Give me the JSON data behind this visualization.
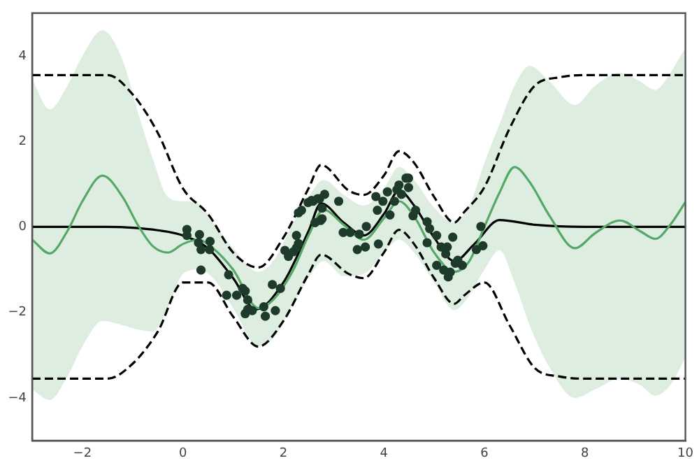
{
  "chart_data": {
    "type": "line",
    "xlim": [
      -3,
      10
    ],
    "ylim": [
      -5,
      5
    ],
    "xticks": [
      {
        "value": -2,
        "label": "−2"
      },
      0,
      2,
      4,
      6,
      8,
      10
    ],
    "yticks": [
      {
        "value": -4,
        "label": "−4"
      },
      {
        "value": -2,
        "label": "−2"
      },
      0,
      2,
      4
    ],
    "grid": false,
    "legend": false,
    "series": [
      {
        "color": "#55a868",
        "marker": "none",
        "line_style": "solid",
        "x": [
          -3,
          -2.65,
          -2.3,
          -2,
          -1.6,
          -1.2,
          -0.9,
          -0.6,
          -0.3,
          0,
          0.3,
          0.6,
          1,
          1.5,
          1.8,
          2.2,
          2.5,
          2.8,
          3.2,
          3.6,
          4,
          4.3,
          4.6,
          5,
          5.4,
          5.7,
          6,
          6.3,
          6.6,
          6.9,
          7.3,
          7.8,
          8.2,
          8.7,
          9.1,
          9.4,
          9.7,
          10
        ],
        "values": [
          -0.3,
          -0.62,
          -0.1,
          0.6,
          1.2,
          0.7,
          0.05,
          -0.45,
          -0.6,
          -0.4,
          -0.3,
          -0.5,
          -1.0,
          -1.9,
          -1.7,
          -1.0,
          -0.2,
          0.4,
          0.05,
          -0.3,
          0.2,
          0.6,
          0.25,
          -0.6,
          -1.05,
          -0.8,
          0.0,
          0.8,
          1.4,
          1.05,
          0.25,
          -0.5,
          -0.15,
          0.15,
          -0.1,
          -0.28,
          0.05,
          0.58
        ],
        "lower": [
          -3.8,
          -4.05,
          -3.5,
          -2.8,
          -2.2,
          -2.3,
          -2.4,
          -2.45,
          -1.9,
          -1.1,
          -1.0,
          -1.2,
          -1.9,
          -2.8,
          -2.6,
          -1.8,
          -1.2,
          -0.8,
          -1.15,
          -1.1,
          -0.6,
          -0.3,
          -0.6,
          -1.3,
          -1.95,
          -1.6,
          -1.0,
          -0.55,
          -1.3,
          -2.3,
          -3.3,
          -4.0,
          -3.8,
          -3.55,
          -3.7,
          -3.95,
          -3.7,
          -3.06
        ],
        "upper": [
          3.45,
          2.75,
          3.3,
          4.0,
          4.6,
          3.9,
          2.7,
          1.6,
          0.7,
          0.6,
          0.55,
          0.1,
          -0.5,
          -1.05,
          -0.8,
          0.1,
          0.7,
          1.1,
          0.75,
          0.5,
          0.9,
          1.4,
          1.1,
          0.45,
          0.1,
          0.5,
          1.5,
          2.4,
          3.3,
          3.77,
          3.4,
          2.85,
          3.3,
          3.6,
          3.4,
          3.2,
          3.6,
          4.2
        ]
      },
      {
        "color": "#000000",
        "marker": "none",
        "line_style": "solid",
        "x": [
          -3,
          -1.5,
          -1,
          -0.5,
          0,
          0.5,
          1,
          1.45,
          2,
          2.5,
          2.75,
          3.2,
          3.6,
          4,
          4.3,
          4.6,
          5,
          5.4,
          5.8,
          6.3,
          7,
          8,
          10
        ],
        "values": [
          0,
          0,
          -0.02,
          -0.08,
          -0.2,
          -0.5,
          -1.2,
          -1.93,
          -1.3,
          -0.1,
          0.55,
          0.1,
          -0.2,
          0.3,
          0.85,
          0.5,
          -0.25,
          -0.8,
          -0.4,
          0.16,
          0.05,
          0,
          0
        ]
      },
      {
        "color": "#000000",
        "marker": "none",
        "line_style": "dashed",
        "x": [
          -3,
          -1.5,
          -1,
          -0.5,
          0,
          0.5,
          1,
          1.5,
          2,
          2.5,
          2.75,
          3.3,
          3.6,
          4,
          4.3,
          4.6,
          5,
          5.4,
          5.6,
          6,
          6.5,
          7,
          7.5,
          8,
          10
        ],
        "values": [
          3.55,
          3.55,
          3.1,
          2.2,
          0.9,
          0.3,
          -0.6,
          -0.95,
          -0.25,
          0.9,
          1.45,
          0.85,
          0.75,
          1.2,
          1.77,
          1.5,
          0.7,
          0.1,
          0.35,
          0.93,
          2.3,
          3.3,
          3.5,
          3.55,
          3.55
        ]
      },
      {
        "color": "#000000",
        "marker": "none",
        "line_style": "dashed",
        "x": [
          -3,
          -1.5,
          -1,
          -0.5,
          0,
          0.5,
          1,
          1.5,
          2,
          2.5,
          2.75,
          3.3,
          3.6,
          4,
          4.3,
          4.6,
          5,
          5.4,
          5.6,
          6,
          6.5,
          7,
          7.5,
          8,
          10
        ],
        "values": [
          -3.55,
          -3.55,
          -3.2,
          -2.45,
          -1.3,
          -1.3,
          -2.1,
          -2.8,
          -2.2,
          -1.1,
          -0.65,
          -1.1,
          -1.2,
          -0.6,
          -0.07,
          -0.4,
          -1.2,
          -1.8,
          -1.6,
          -1.3,
          -2.3,
          -3.3,
          -3.5,
          -3.55,
          -3.55
        ]
      },
      {
        "type": "scatter",
        "color": "#1e3a2a",
        "marker": "circle",
        "x": [
          0.08,
          0.08,
          0.33,
          0.31,
          0.54,
          0.53,
          0.36,
          0.36,
          0.91,
          0.87,
          1.07,
          1.19,
          1.24,
          1.29,
          1.29,
          1.24,
          1.38,
          1.61,
          1.64,
          1.84,
          1.78,
          1.94,
          2.03,
          2.1,
          2.2,
          2.26,
          2.3,
          2.26,
          2.3,
          2.36,
          2.49,
          2.56,
          2.59,
          2.68,
          2.72,
          2.77,
          2.63,
          2.74,
          2.82,
          3.1,
          3.19,
          2.77,
          3.33,
          3.47,
          3.51,
          3.63,
          3.65,
          3.84,
          3.87,
          3.89,
          3.98,
          4.07,
          4.12,
          4.21,
          4.26,
          4.3,
          4.35,
          4.44,
          4.49,
          4.49,
          4.58,
          4.63,
          4.86,
          4.91,
          4.86,
          5.05,
          5.05,
          5.14,
          5.19,
          5.23,
          5.26,
          5.28,
          5.32,
          5.37,
          5.42,
          5.47,
          5.56,
          5.84,
          5.93,
          5.97
        ],
        "values": [
          -0.06,
          -0.2,
          -0.18,
          -0.37,
          -0.34,
          -0.53,
          -0.53,
          -1.01,
          -1.12,
          -1.6,
          -1.6,
          -1.44,
          -1.5,
          -1.71,
          -1.93,
          -2.03,
          -1.96,
          -1.87,
          -2.09,
          -1.96,
          -1.35,
          -1.44,
          -0.55,
          -0.69,
          -0.58,
          -0.49,
          -0.39,
          -0.2,
          0.33,
          0.39,
          0.57,
          0.62,
          0.6,
          0.66,
          0.66,
          0.44,
          0.1,
          0.15,
          0.76,
          0.6,
          -0.13,
          0.19,
          -0.13,
          -0.53,
          -0.17,
          -0.47,
          0.01,
          0.71,
          0.39,
          -0.4,
          0.6,
          0.82,
          0.28,
          0.6,
          0.87,
          0.98,
          0.76,
          1.14,
          0.92,
          1.14,
          0.26,
          0.39,
          0.12,
          -0.04,
          -0.37,
          -0.2,
          -0.9,
          -0.47,
          -1.01,
          -0.63,
          -0.47,
          -1.17,
          -1.06,
          -0.24,
          -0.85,
          -0.78,
          -0.9,
          -0.53,
          0.01,
          -0.44
        ]
      }
    ]
  }
}
